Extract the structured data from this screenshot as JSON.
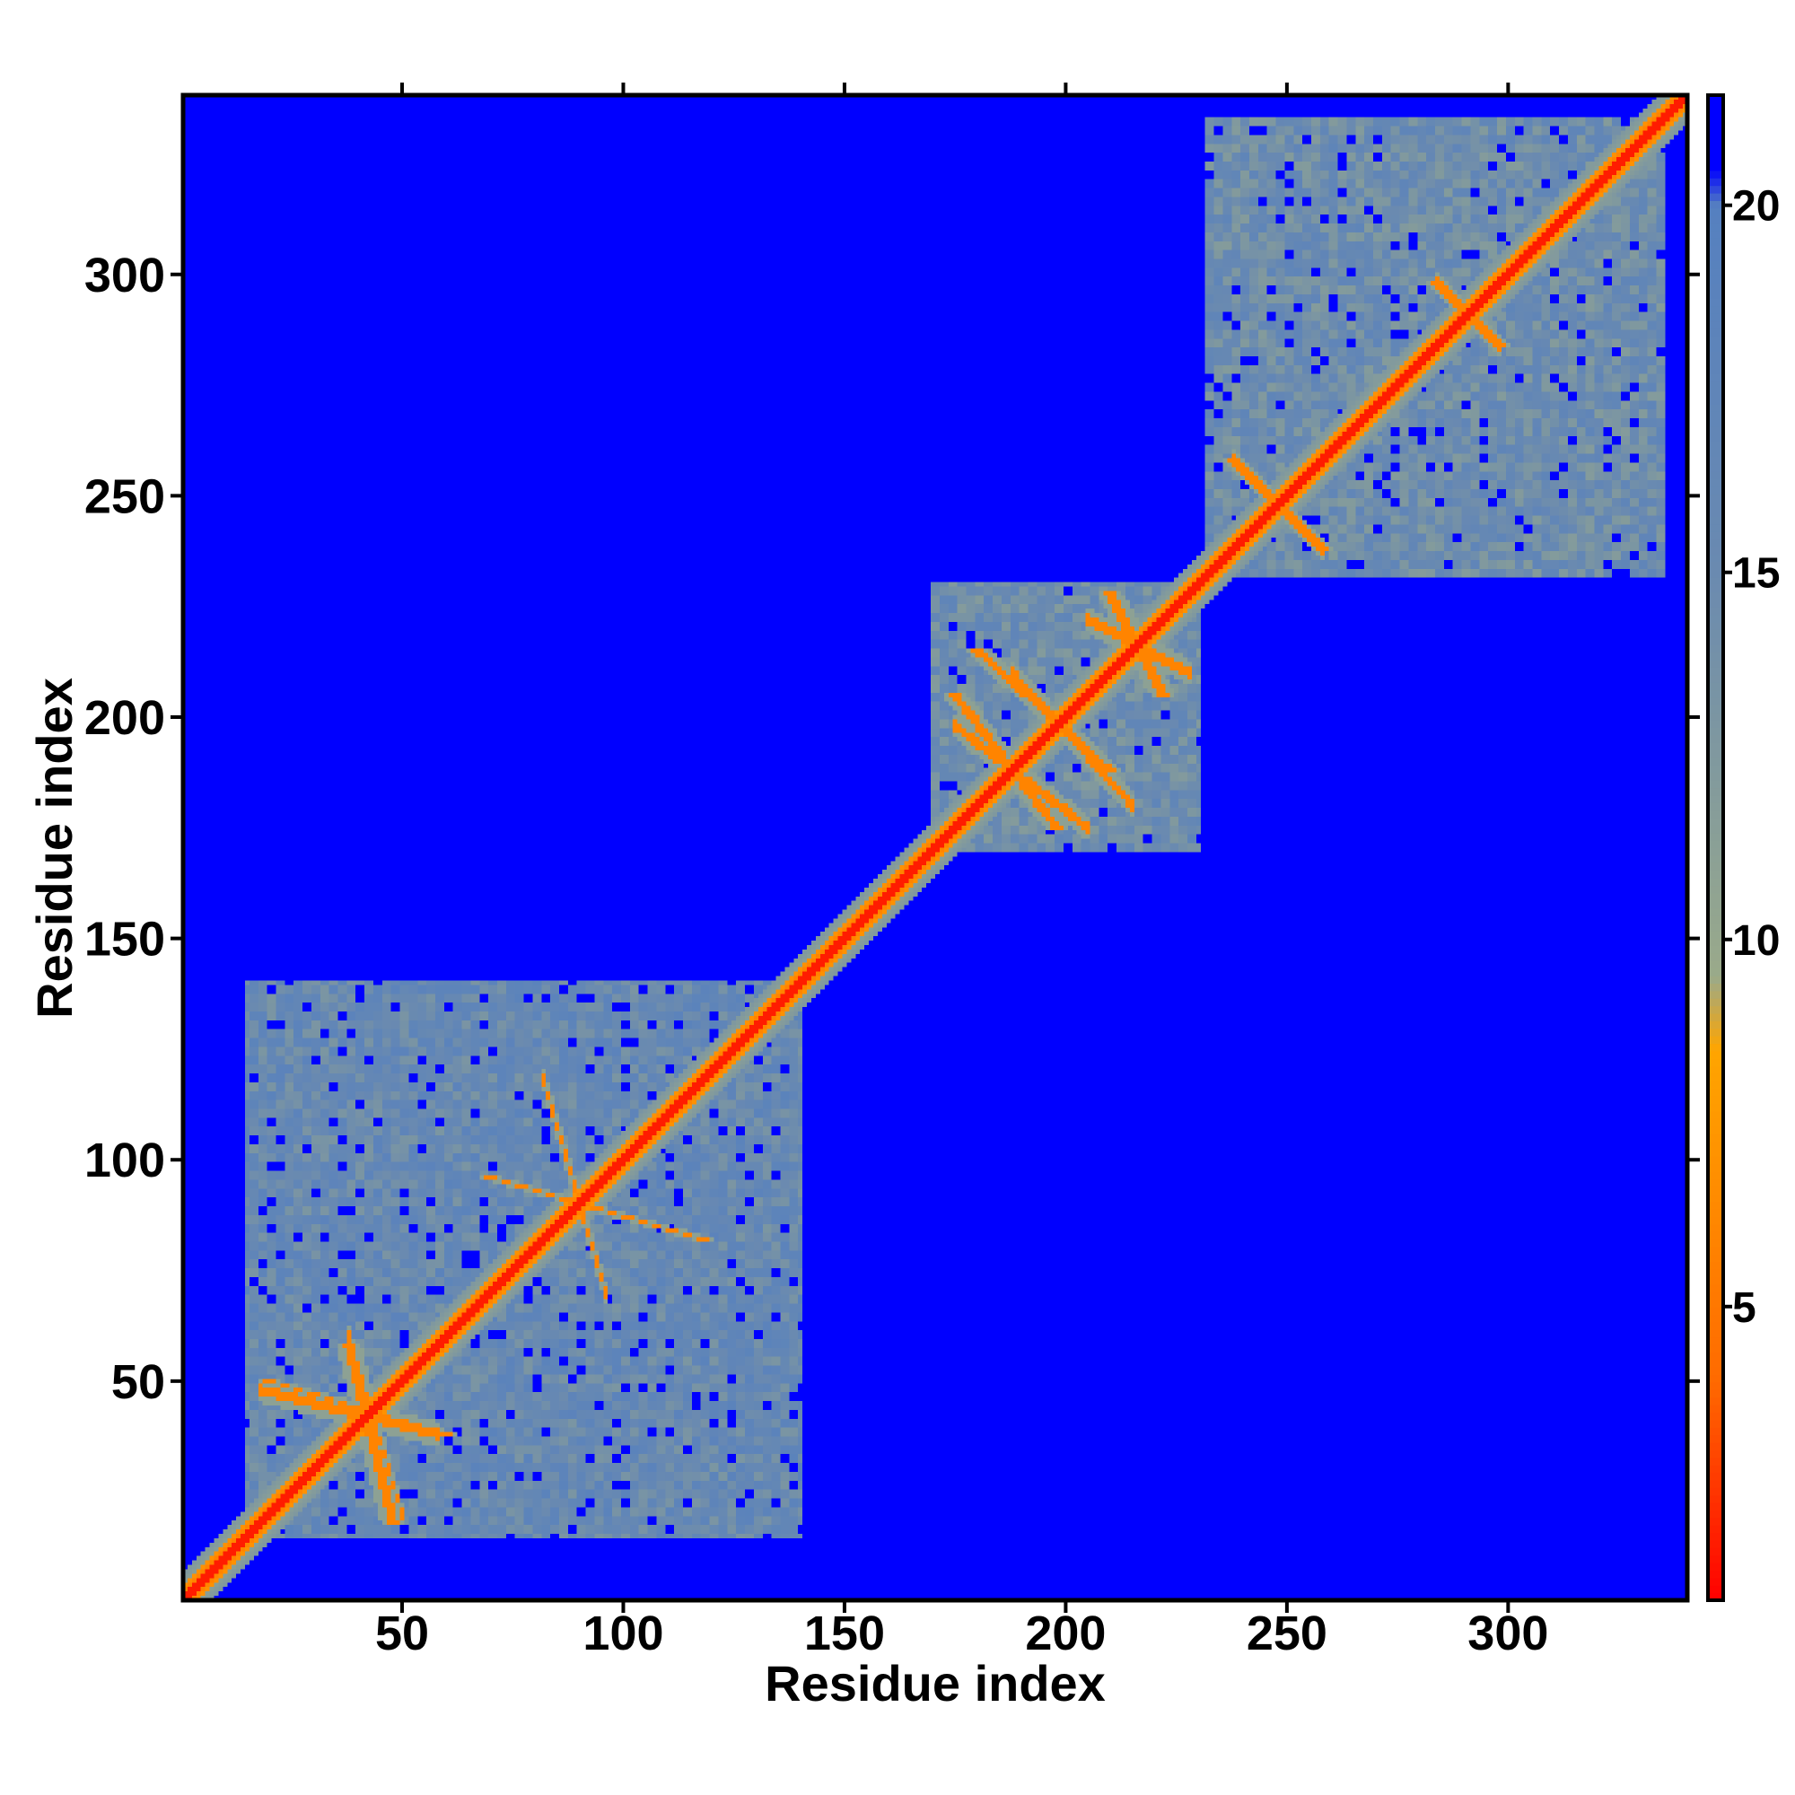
{
  "chart_data": {
    "type": "heatmap",
    "title": "",
    "xlabel": "Residue index",
    "ylabel": "Residue index",
    "n_residues": 340,
    "xlim": [
      1,
      340
    ],
    "ylim": [
      1,
      340
    ],
    "x_ticks": [
      50,
      100,
      150,
      200,
      250,
      300
    ],
    "y_ticks": [
      50,
      100,
      150,
      200,
      250,
      300
    ],
    "x_tick_labels": [
      "50",
      "100",
      "150",
      "200",
      "250",
      "300"
    ],
    "y_tick_labels": [
      "50",
      "100",
      "150",
      "200",
      "250",
      "300"
    ],
    "colorbar": {
      "ticks": [
        5,
        10,
        15,
        20
      ],
      "tick_labels": [
        "5",
        "10",
        "15",
        "20"
      ],
      "range": [
        1,
        21.5
      ],
      "colors": [
        {
          "value": 1,
          "color": "#ff0000"
        },
        {
          "value": 4,
          "color": "#ff6a00"
        },
        {
          "value": 8.5,
          "color": "#ffa500"
        },
        {
          "value": 9.5,
          "color": "#9aaa8a"
        },
        {
          "value": 15,
          "color": "#6a8ab0"
        },
        {
          "value": 20,
          "color": "#5580c0"
        },
        {
          "value": 20.5,
          "color": "#0000ff"
        }
      ]
    },
    "background_value": 21,
    "domains": [
      {
        "name_range": [
          1,
          140
        ],
        "region": [
          15,
          140
        ],
        "mean_distance": 16
      },
      {
        "name_range": [
          170,
          230
        ],
        "region": [
          170,
          230
        ],
        "mean_distance": 15
      },
      {
        "name_range": [
          232,
          335
        ],
        "region": [
          232,
          335
        ],
        "mean_distance": 15
      }
    ],
    "secondary_contacts": [
      {
        "x": [
          18,
          58
        ],
        "y": [
          48,
          38
        ],
        "orientation": "antiparallel"
      },
      {
        "x": [
          38,
          50
        ],
        "y": [
          60,
          20
        ],
        "orientation": "antiparallel"
      },
      {
        "x": [
          82,
          96
        ],
        "y": [
          118,
          70
        ],
        "orientation": "antiparallel"
      },
      {
        "x": [
          175,
          205
        ],
        "y": [
          198,
          175
        ],
        "orientation": "antiparallel"
      },
      {
        "x": [
          188,
          215
        ],
        "y": [
          210,
          180
        ],
        "orientation": "antiparallel"
      },
      {
        "x": [
          205,
          228
        ],
        "y": [
          222,
          210
        ],
        "orientation": "antiparallel"
      },
      {
        "x": [
          238,
          258
        ],
        "y": [
          258,
          238
        ],
        "orientation": "antiparallel"
      },
      {
        "x": [
          284,
          298
        ],
        "y": [
          298,
          284
        ],
        "orientation": "antiparallel"
      }
    ],
    "grid": false,
    "legend": "colorbar-right"
  }
}
